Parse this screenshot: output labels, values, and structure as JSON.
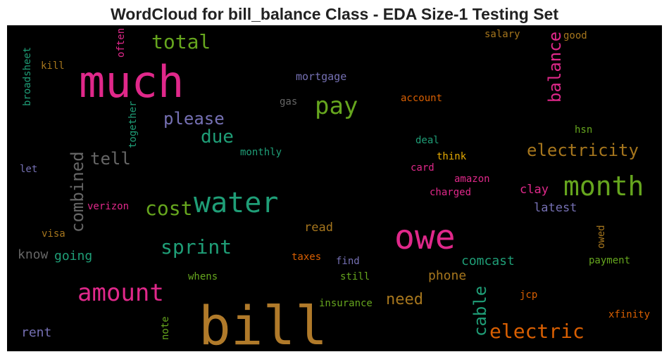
{
  "chart_data": {
    "type": "wordcloud",
    "title": "WordCloud for bill_balance Class - EDA Size-1 Testing Set",
    "background": "#000000",
    "words": [
      {
        "text": "bill",
        "color": "#b07a2a"
      },
      {
        "text": "much",
        "color": "#e0288a"
      },
      {
        "text": "owe",
        "color": "#e0288a"
      },
      {
        "text": "water",
        "color": "#1f9e77"
      },
      {
        "text": "month",
        "color": "#66a61e"
      },
      {
        "text": "amount",
        "color": "#e0288a"
      },
      {
        "text": "pay",
        "color": "#66a61e"
      },
      {
        "text": "electric",
        "color": "#d95f02"
      },
      {
        "text": "sprint",
        "color": "#1f9e77"
      },
      {
        "text": "cost",
        "color": "#66a61e"
      },
      {
        "text": "total",
        "color": "#66a61e"
      },
      {
        "text": "electricity",
        "color": "#a6761d"
      },
      {
        "text": "due",
        "color": "#1f9e77"
      },
      {
        "text": "please",
        "color": "#7570b3"
      },
      {
        "text": "tell",
        "color": "#666666"
      },
      {
        "text": "combined",
        "color": "#666666"
      },
      {
        "text": "balance",
        "color": "#e0288a"
      },
      {
        "text": "cable",
        "color": "#1f9e77"
      },
      {
        "text": "need",
        "color": "#a6761d"
      },
      {
        "text": "comcast",
        "color": "#1f9e77"
      },
      {
        "text": "phone",
        "color": "#a6761d"
      },
      {
        "text": "going",
        "color": "#1f9e77"
      },
      {
        "text": "know",
        "color": "#666666"
      },
      {
        "text": "rent",
        "color": "#7570b3"
      },
      {
        "text": "read",
        "color": "#a6761d"
      },
      {
        "text": "clay",
        "color": "#e0288a"
      },
      {
        "text": "latest",
        "color": "#7570b3"
      },
      {
        "text": "mortgage",
        "color": "#7570b3"
      },
      {
        "text": "gas",
        "color": "#666666"
      },
      {
        "text": "account",
        "color": "#d95f02"
      },
      {
        "text": "salary",
        "color": "#a6761d"
      },
      {
        "text": "good",
        "color": "#a6761d"
      },
      {
        "text": "hsn",
        "color": "#66a61e"
      },
      {
        "text": "deal",
        "color": "#1f9e77"
      },
      {
        "text": "think",
        "color": "#e6ab02"
      },
      {
        "text": "card",
        "color": "#e0288a"
      },
      {
        "text": "amazon",
        "color": "#e0288a"
      },
      {
        "text": "charged",
        "color": "#e0288a"
      },
      {
        "text": "monthly",
        "color": "#1f9e77"
      },
      {
        "text": "kill",
        "color": "#a6761d"
      },
      {
        "text": "let",
        "color": "#7570b3"
      },
      {
        "text": "verizon",
        "color": "#e0288a"
      },
      {
        "text": "visa",
        "color": "#a6761d"
      },
      {
        "text": "taxes",
        "color": "#d95f02"
      },
      {
        "text": "find",
        "color": "#7570b3"
      },
      {
        "text": "whens",
        "color": "#66a61e"
      },
      {
        "text": "still",
        "color": "#66a61e"
      },
      {
        "text": "insurance",
        "color": "#66a61e"
      },
      {
        "text": "jcp",
        "color": "#d95f02"
      },
      {
        "text": "xfinity",
        "color": "#d95f02"
      },
      {
        "text": "payment",
        "color": "#66a61e"
      },
      {
        "text": "owed",
        "color": "#a6761d"
      },
      {
        "text": "note",
        "color": "#66a61e"
      },
      {
        "text": "broadsheet",
        "color": "#1f9e77"
      },
      {
        "text": "often",
        "color": "#e0288a"
      },
      {
        "text": "together",
        "color": "#1f9e77"
      }
    ]
  }
}
